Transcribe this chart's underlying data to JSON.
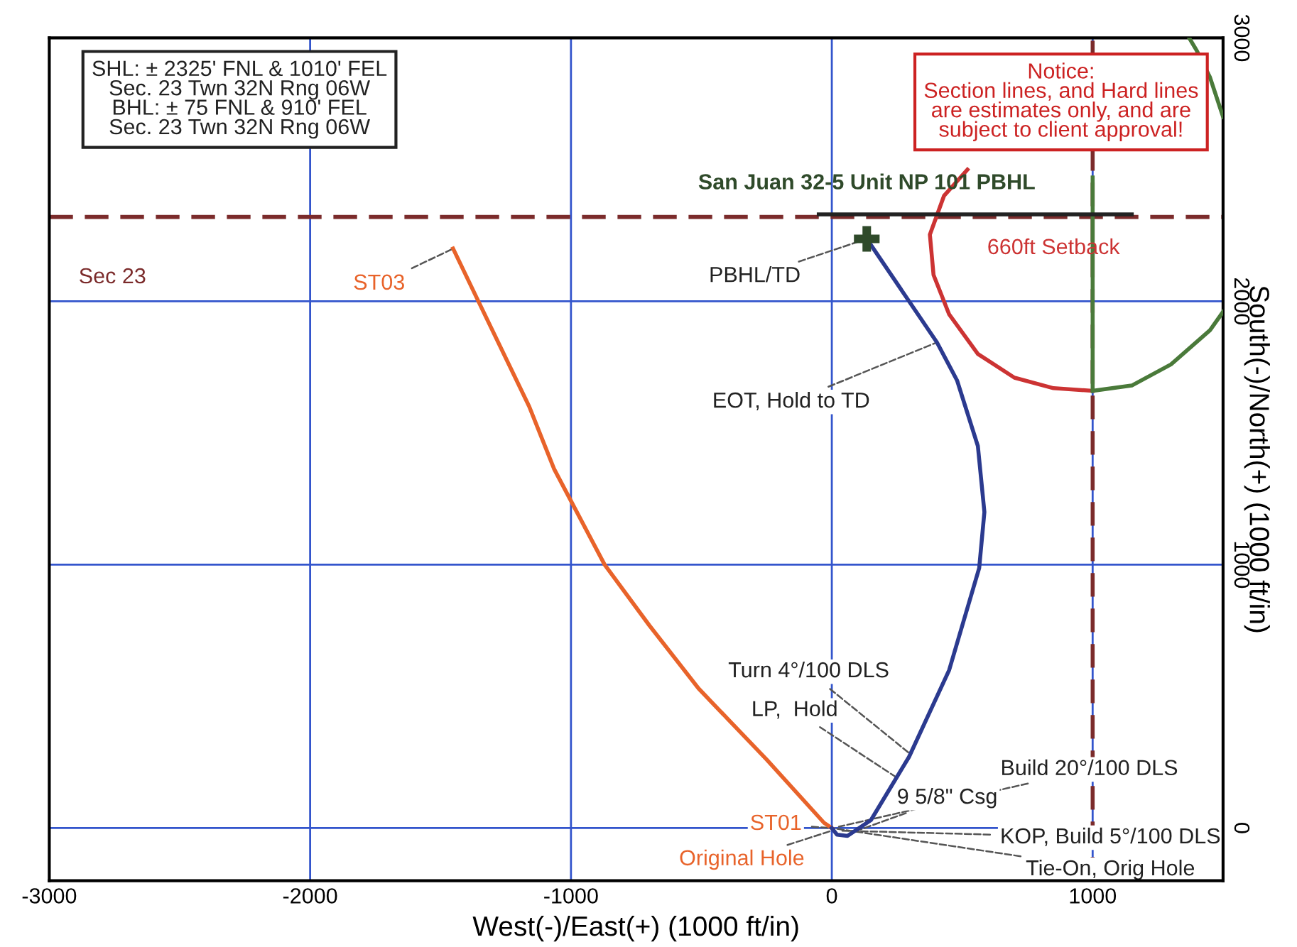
{
  "chart_data": {
    "type": "line",
    "xlabel": "West(-)/East(+) (1000 ft/in)",
    "ylabel": "South(-)/North(+) (1000 ft/in)",
    "xlim": [
      -3000,
      1500
    ],
    "ylim": [
      -200,
      3000
    ],
    "xticks": [
      -3000,
      -2000,
      -1000,
      0,
      1000
    ],
    "yticks": [
      0,
      1000,
      2000,
      3000
    ],
    "grid": true,
    "legend": false,
    "series": [
      {
        "color": "#e8632a",
        "x": [
          0,
          -30,
          -250,
          -511,
          -700,
          -871,
          -1065,
          -1160,
          -1355,
          -1452
        ],
        "values": [
          0,
          20,
          260,
          530,
          770,
          1000,
          1364,
          1600,
          2000,
          2200
        ]
      },
      {
        "color": "#2b3a8f",
        "x": [
          0,
          20,
          60,
          150,
          296,
          450,
          565,
          585,
          560,
          480,
          403,
          134
        ],
        "values": [
          0,
          -25,
          -30,
          30,
          270,
          600,
          987,
          1200,
          1450,
          1700,
          1844,
          2237
        ]
      },
      {
        "type": "line",
        "name": "660ft Setback",
        "color": "#cc3333",
        "x": [
          520,
          430,
          376,
          390,
          450,
          560,
          700,
          850,
          1000
        ],
        "values": [
          2500,
          2400,
          2253,
          2100,
          1950,
          1800,
          1710,
          1670,
          1660
        ]
      },
      {
        "type": "line",
        "color": "#4a7a3a",
        "x": [
          1000,
          1150,
          1300,
          1450,
          1500,
          null,
          1500,
          1450,
          1400,
          1370
        ],
        "values": [
          1660,
          1680,
          1760,
          1890,
          1960,
          null,
          2700,
          2850,
          2950,
          3000
        ]
      },
      {
        "type": "line",
        "color": "#4a7a3a",
        "x": [
          1000,
          1000
        ],
        "values": [
          2470,
          1660
        ]
      },
      {
        "type": "line",
        "color": "#222222",
        "x": [
          -50,
          1150
        ],
        "values": [
          2330,
          2330
        ]
      },
      {
        "type": "scatter",
        "name": "San Juan 32-5 Unit NP 101 PBHL",
        "color": "#2f4a2a",
        "marker": "cross",
        "x": [
          134
        ],
        "values": [
          2237
        ]
      }
    ],
    "ref_lines": [
      {
        "axis": "y",
        "value": 2320,
        "label": "Sec 23",
        "color": "#7b2b2b",
        "line_style": "dashed"
      },
      {
        "axis": "x",
        "value": 1000,
        "color": "#7b2b2b",
        "line_style": "dashed"
      }
    ],
    "annotations": [
      "SHL: ± 2325' FNL & 1010' FEL\nSec. 23 Twn 32N Rng 06W\nBHL: ± 75 FNL & 910' FEL\nSec. 23 Twn 32N Rng 06W",
      "Notice:\nSection lines, and Hard lines\nare estimates only, and are\nsubject to client approval!",
      {
        "text": "PBHL/TD",
        "x": 134,
        "y": 2237
      },
      {
        "text": "EOT, Hold to TD",
        "x": 403,
        "y": 1844
      },
      {
        "text": "ST03",
        "x": -1452,
        "y": 2200
      },
      {
        "text": "Turn 4°/100 DLS",
        "x": 296,
        "y": 285
      },
      {
        "text": "LP,  Hold",
        "x": 253,
        "y": 189
      },
      {
        "text": "Build 20°/100 DLS",
        "x": 27,
        "y": 5
      },
      {
        "text": "9 5/8\" Csg",
        "x": 70,
        "y": -20
      },
      {
        "text": "KOP, Build 5°/100 DLS",
        "x": 30,
        "y": -10
      },
      {
        "text": "Tie-On, Orig Hole",
        "x": 0,
        "y": 0
      },
      {
        "text": "ST01",
        "x": 0,
        "y": 0
      },
      {
        "text": "Original Hole",
        "x": 0,
        "y": -10
      }
    ]
  }
}
